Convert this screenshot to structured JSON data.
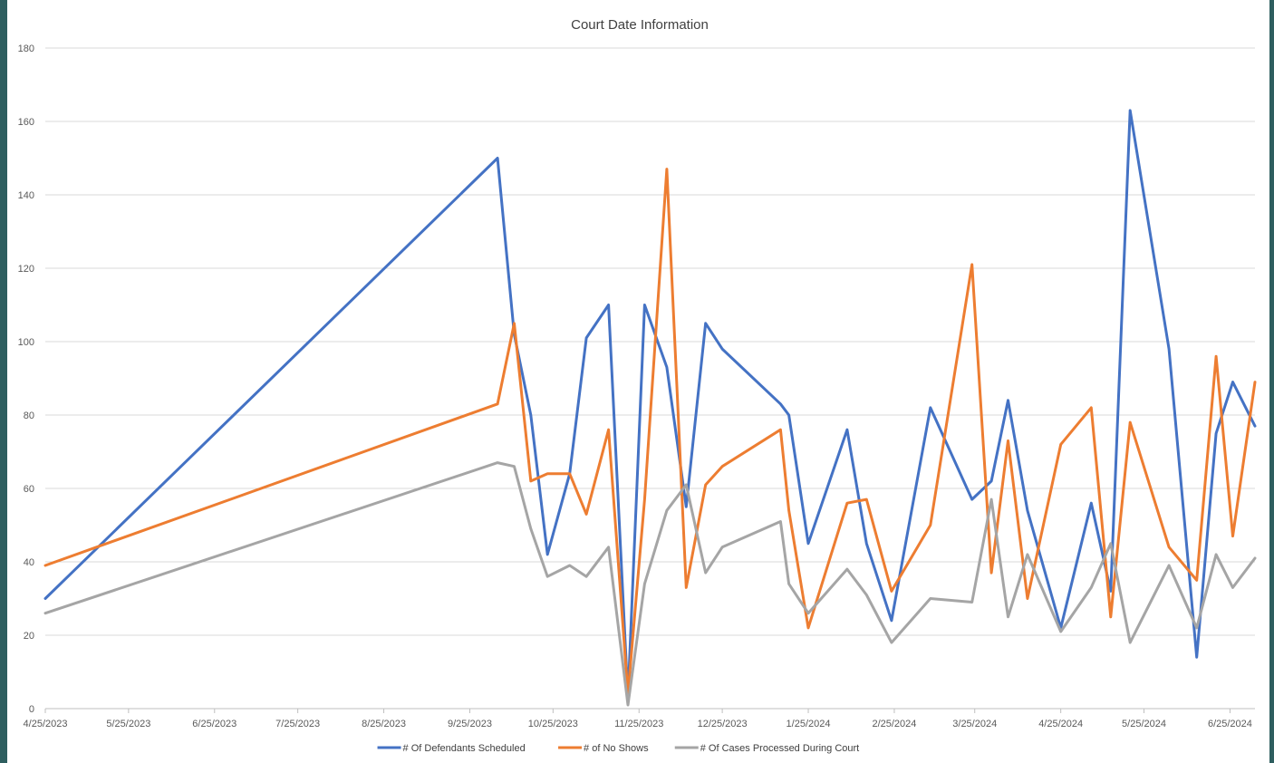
{
  "chart_data": {
    "type": "line",
    "title": "Court Date Information",
    "xlabel": "",
    "ylabel": "",
    "x_ticks": [
      "4/25/2023",
      "5/25/2023",
      "6/25/2023",
      "7/25/2023",
      "8/25/2023",
      "9/25/2023",
      "10/25/2023",
      "11/25/2023",
      "12/25/2023",
      "1/25/2024",
      "2/25/2024",
      "3/25/2024",
      "4/25/2024",
      "5/25/2024",
      "6/25/2024"
    ],
    "y_ticks": [
      "0",
      "20",
      "40",
      "60",
      "80",
      "100",
      "120",
      "140",
      "160",
      "180"
    ],
    "ylim": [
      0,
      180
    ],
    "grid": true,
    "legend_position": "bottom",
    "x": [
      "2023-04-25",
      "2023-10-05",
      "2023-10-11",
      "2023-10-17",
      "2023-10-23",
      "2023-10-31",
      "2023-11-06",
      "2023-11-14",
      "2023-11-21",
      "2023-11-27",
      "2023-12-05",
      "2023-12-12",
      "2023-12-19",
      "2023-12-25",
      "2024-01-15",
      "2024-01-18",
      "2024-01-25",
      "2024-02-08",
      "2024-02-15",
      "2024-02-24",
      "2024-03-09",
      "2024-03-24",
      "2024-03-31",
      "2024-04-06",
      "2024-04-13",
      "2024-04-25",
      "2024-05-06",
      "2024-05-13",
      "2024-05-20",
      "2024-06-03",
      "2024-06-13",
      "2024-06-20",
      "2024-06-26",
      "2024-07-04"
    ],
    "series": [
      {
        "name": "# Of Defendants Scheduled",
        "color": "#4472c4",
        "values": [
          30,
          150,
          102,
          80,
          42,
          64,
          101,
          110,
          3,
          110,
          93,
          55,
          105,
          98,
          83,
          80,
          45,
          76,
          45,
          24,
          82,
          57,
          62,
          84,
          54,
          22,
          56,
          32,
          163,
          98,
          14,
          75,
          89,
          77
        ]
      },
      {
        "name": "# of No Shows",
        "color": "#ed7d31",
        "values": [
          39,
          83,
          105,
          62,
          64,
          64,
          53,
          76,
          4,
          57,
          147,
          33,
          61,
          66,
          76,
          54,
          22,
          56,
          57,
          32,
          50,
          121,
          37,
          73,
          30,
          72,
          82,
          25,
          78,
          44,
          35,
          96,
          47,
          89
        ]
      },
      {
        "name": "# Of Cases Processed During Court",
        "color": "#a5a5a5",
        "values": [
          26,
          67,
          66,
          49,
          36,
          39,
          36,
          44,
          1,
          34,
          54,
          61,
          37,
          44,
          51,
          34,
          26,
          38,
          31,
          18,
          30,
          29,
          57,
          25,
          42,
          21,
          33,
          45,
          18,
          39,
          22,
          42,
          33,
          41
        ]
      }
    ]
  }
}
